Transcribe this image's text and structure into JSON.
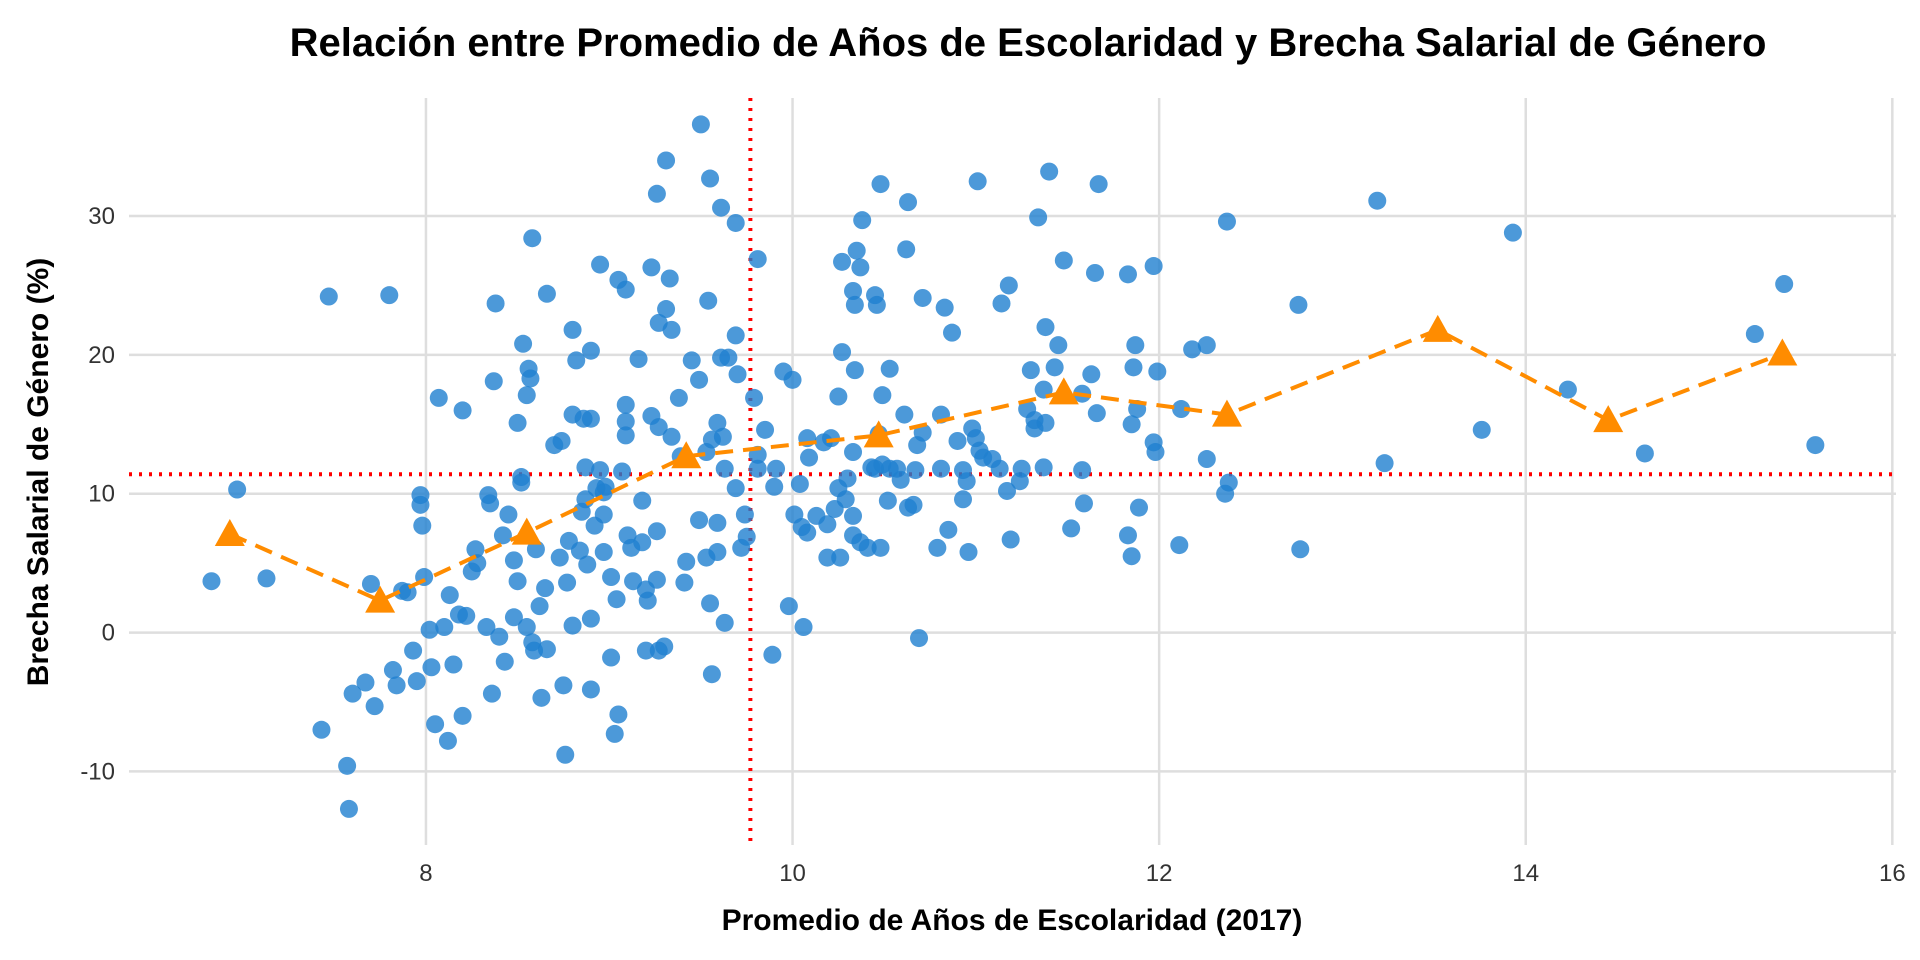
{
  "chart_data": {
    "type": "scatter",
    "title": "Relación entre Promedio de Años de Escolaridad y Brecha Salarial de Género",
    "xlabel": "Promedio de Años de Escolaridad (2017)",
    "ylabel": "Brecha Salarial de Género (%)",
    "xlim": [
      6.38,
      16.02
    ],
    "ylim": [
      -15.3,
      38.5
    ],
    "xticks": [
      8,
      10,
      12,
      14,
      16
    ],
    "yticks": [
      -10,
      0,
      10,
      20,
      30
    ],
    "grid": true,
    "colors": {
      "points": "#1f7fcf",
      "trend": "#ff8c00",
      "reference": "#ff0000"
    },
    "reference_lines": {
      "x_mean": 9.77,
      "y_mean": 11.4
    },
    "series": [
      {
        "name": "points",
        "type": "scatter",
        "points": [
          [
            6.83,
            3.7
          ],
          [
            6.97,
            10.3
          ],
          [
            7.13,
            3.9
          ],
          [
            7.43,
            -7
          ],
          [
            7.47,
            24.2
          ],
          [
            7.57,
            -9.6
          ],
          [
            7.58,
            -12.7
          ],
          [
            7.6,
            -4.4
          ],
          [
            7.67,
            -3.6
          ],
          [
            7.7,
            3.5
          ],
          [
            7.72,
            -5.3
          ],
          [
            7.8,
            24.3
          ],
          [
            7.82,
            -2.7
          ],
          [
            7.84,
            -3.8
          ],
          [
            7.87,
            3
          ],
          [
            7.9,
            2.9
          ],
          [
            7.93,
            -1.3
          ],
          [
            7.95,
            -3.5
          ],
          [
            7.97,
            9.9
          ],
          [
            7.97,
            9.2
          ],
          [
            7.98,
            7.7
          ],
          [
            7.99,
            4
          ],
          [
            8.02,
            0.2
          ],
          [
            8.03,
            -2.5
          ],
          [
            8.05,
            -6.6
          ],
          [
            8.07,
            16.9
          ],
          [
            8.1,
            0.4
          ],
          [
            8.13,
            2.7
          ],
          [
            8.12,
            -7.8
          ],
          [
            8.15,
            -2.3
          ],
          [
            8.18,
            1.3
          ],
          [
            8.2,
            -6
          ],
          [
            8.2,
            16
          ],
          [
            8.22,
            1.2
          ],
          [
            8.25,
            4.4
          ],
          [
            8.27,
            6
          ],
          [
            8.28,
            5
          ],
          [
            8.33,
            0.4
          ],
          [
            8.34,
            9.9
          ],
          [
            8.35,
            9.3
          ],
          [
            8.36,
            -4.4
          ],
          [
            8.37,
            18.1
          ],
          [
            8.38,
            23.7
          ],
          [
            8.4,
            -0.3
          ],
          [
            8.42,
            7
          ],
          [
            8.43,
            -2.1
          ],
          [
            8.45,
            8.5
          ],
          [
            8.48,
            1.1
          ],
          [
            8.48,
            5.2
          ],
          [
            8.5,
            3.7
          ],
          [
            8.5,
            15.1
          ],
          [
            8.52,
            11.2
          ],
          [
            8.52,
            10.8
          ],
          [
            8.53,
            20.8
          ],
          [
            8.55,
            17.1
          ],
          [
            8.55,
            0.4
          ],
          [
            8.56,
            19
          ],
          [
            8.57,
            18.3
          ],
          [
            8.58,
            -0.7
          ],
          [
            8.59,
            -1.3
          ],
          [
            8.6,
            6
          ],
          [
            8.58,
            28.4
          ],
          [
            8.62,
            1.9
          ],
          [
            8.63,
            -4.7
          ],
          [
            8.65,
            3.2
          ],
          [
            8.66,
            -1.2
          ],
          [
            8.66,
            24.4
          ],
          [
            8.7,
            13.5
          ],
          [
            8.73,
            5.4
          ],
          [
            8.74,
            13.8
          ],
          [
            8.75,
            -3.8
          ],
          [
            8.76,
            -8.8
          ],
          [
            8.77,
            3.6
          ],
          [
            8.78,
            6.6
          ],
          [
            8.8,
            0.5
          ],
          [
            8.8,
            15.7
          ],
          [
            8.8,
            21.8
          ],
          [
            8.82,
            19.6
          ],
          [
            8.84,
            5.9
          ],
          [
            8.85,
            8.7
          ],
          [
            8.86,
            15.4
          ],
          [
            8.87,
            9.6
          ],
          [
            8.87,
            11.9
          ],
          [
            8.88,
            4.9
          ],
          [
            8.9,
            20.3
          ],
          [
            8.9,
            1
          ],
          [
            8.9,
            -4.1
          ],
          [
            8.92,
            7.7
          ],
          [
            8.93,
            10.4
          ],
          [
            8.95,
            11.7
          ],
          [
            8.97,
            5.8
          ],
          [
            8.98,
            10.5
          ],
          [
            9.5,
            36.6
          ],
          [
            9.31,
            34
          ],
          [
            9.26,
            31.6
          ],
          [
            9.55,
            32.7
          ],
          [
            9.61,
            30.6
          ],
          [
            9.69,
            29.5
          ],
          [
            9.81,
            26.9
          ],
          [
            8.95,
            26.5
          ],
          [
            9.05,
            25.4
          ],
          [
            9.09,
            24.7
          ],
          [
            9.23,
            26.3
          ],
          [
            9.33,
            25.5
          ],
          [
            9.31,
            23.3
          ],
          [
            9.27,
            22.3
          ],
          [
            9.34,
            21.8
          ],
          [
            9.54,
            23.9
          ],
          [
            9.69,
            21.4
          ],
          [
            9.16,
            19.7
          ],
          [
            9.45,
            19.6
          ],
          [
            9.61,
            19.8
          ],
          [
            9.65,
            19.8
          ],
          [
            9.7,
            18.6
          ],
          [
            9.49,
            18.2
          ],
          [
            9.38,
            16.9
          ],
          [
            9.79,
            16.9
          ],
          [
            9.09,
            16.4
          ],
          [
            9.23,
            15.6
          ],
          [
            9.09,
            15.2
          ],
          [
            9.59,
            15.1
          ],
          [
            8.9,
            15.4
          ],
          [
            9.27,
            14.8
          ],
          [
            9.56,
            13.9
          ],
          [
            9.34,
            14.1
          ],
          [
            9.09,
            14.2
          ],
          [
            9.62,
            14.1
          ],
          [
            9.85,
            14.6
          ],
          [
            9.53,
            13
          ],
          [
            9.81,
            12.8
          ],
          [
            9.39,
            12.7
          ],
          [
            9.63,
            11.8
          ],
          [
            9.07,
            11.6
          ],
          [
            9.81,
            11.8
          ],
          [
            9.9,
            10.5
          ],
          [
            9.69,
            10.4
          ],
          [
            9.18,
            9.5
          ],
          [
            8.97,
            10.1
          ],
          [
            8.97,
            8.5
          ],
          [
            9.74,
            8.5
          ],
          [
            9.49,
            8.1
          ],
          [
            9.59,
            7.9
          ],
          [
            9.26,
            7.3
          ],
          [
            9.1,
            7
          ],
          [
            9.75,
            6.9
          ],
          [
            9.12,
            6.1
          ],
          [
            9.18,
            6.5
          ],
          [
            9.59,
            5.8
          ],
          [
            9.53,
            5.4
          ],
          [
            9.42,
            5.1
          ],
          [
            9.72,
            6.1
          ],
          [
            9.01,
            4
          ],
          [
            9.13,
            3.7
          ],
          [
            9.26,
            3.8
          ],
          [
            9.2,
            3.1
          ],
          [
            9.41,
            3.6
          ],
          [
            9.04,
            2.4
          ],
          [
            9.55,
            2.1
          ],
          [
            9.21,
            2.3
          ],
          [
            9.98,
            1.9
          ],
          [
            9.63,
            0.7
          ],
          [
            10.06,
            0.4
          ],
          [
            9.2,
            -1.3
          ],
          [
            9.27,
            -1.3
          ],
          [
            9.3,
            -1
          ],
          [
            9.01,
            -1.8
          ],
          [
            9.89,
            -1.6
          ],
          [
            9.56,
            -3
          ],
          [
            9.05,
            -5.9
          ],
          [
            9.03,
            -7.3
          ],
          [
            9.95,
            18.8
          ],
          [
            10,
            18.2
          ],
          [
            10.08,
            14
          ],
          [
            9.91,
            11.8
          ],
          [
            10.04,
            10.7
          ],
          [
            10.09,
            12.6
          ],
          [
            10.17,
            13.7
          ],
          [
            10.21,
            14
          ],
          [
            10.01,
            8.5
          ],
          [
            10.05,
            7.6
          ],
          [
            10.08,
            7.2
          ],
          [
            10.13,
            8.4
          ],
          [
            10.19,
            7.8
          ],
          [
            10.23,
            8.9
          ],
          [
            10.19,
            5.4
          ],
          [
            10.26,
            5.4
          ],
          [
            10.27,
            26.7
          ],
          [
            10.35,
            27.5
          ],
          [
            10.37,
            26.3
          ],
          [
            10.38,
            29.7
          ],
          [
            10.33,
            24.6
          ],
          [
            10.34,
            23.6
          ],
          [
            10.45,
            24.3
          ],
          [
            10.46,
            23.6
          ],
          [
            10.48,
            32.3
          ],
          [
            10.63,
            31
          ],
          [
            10.62,
            27.6
          ],
          [
            10.71,
            24.1
          ],
          [
            10.83,
            23.4
          ],
          [
            10.87,
            21.6
          ],
          [
            11.01,
            32.5
          ],
          [
            11.18,
            25
          ],
          [
            11.14,
            23.7
          ],
          [
            10.27,
            20.2
          ],
          [
            10.34,
            18.9
          ],
          [
            10.53,
            19
          ],
          [
            10.25,
            17
          ],
          [
            10.49,
            17.1
          ],
          [
            10.61,
            15.7
          ],
          [
            10.81,
            15.7
          ],
          [
            10.47,
            14.3
          ],
          [
            10.71,
            14.4
          ],
          [
            10.98,
            14.7
          ],
          [
            11,
            14
          ],
          [
            10.9,
            13.8
          ],
          [
            11.02,
            13.1
          ],
          [
            11.04,
            12.6
          ],
          [
            11.09,
            12.5
          ],
          [
            10.68,
            13.5
          ],
          [
            10.33,
            13
          ],
          [
            10.45,
            11.8
          ],
          [
            10.49,
            12.1
          ],
          [
            10.53,
            11.8
          ],
          [
            10.57,
            11.8
          ],
          [
            10.43,
            11.9
          ],
          [
            10.3,
            11.1
          ],
          [
            10.59,
            11
          ],
          [
            10.67,
            11.7
          ],
          [
            10.81,
            11.8
          ],
          [
            10.93,
            11.7
          ],
          [
            10.95,
            10.9
          ],
          [
            11.13,
            11.8
          ],
          [
            10.29,
            9.6
          ],
          [
            10.25,
            10.4
          ],
          [
            10.33,
            8.4
          ],
          [
            10.52,
            9.5
          ],
          [
            10.63,
            9
          ],
          [
            10.66,
            9.2
          ],
          [
            10.93,
            9.6
          ],
          [
            11.17,
            10.2
          ],
          [
            10.33,
            7
          ],
          [
            10.37,
            6.5
          ],
          [
            10.41,
            6.1
          ],
          [
            10.48,
            6.1
          ],
          [
            10.79,
            6.1
          ],
          [
            10.85,
            7.4
          ],
          [
            10.96,
            5.8
          ],
          [
            10.69,
            -0.4
          ],
          [
            11.19,
            6.7
          ],
          [
            11.4,
            33.2
          ],
          [
            11.34,
            29.9
          ],
          [
            11.67,
            32.3
          ],
          [
            11.48,
            26.8
          ],
          [
            11.65,
            25.9
          ],
          [
            11.83,
            25.8
          ],
          [
            11.97,
            26.4
          ],
          [
            11.38,
            22
          ],
          [
            11.45,
            20.7
          ],
          [
            11.43,
            19.1
          ],
          [
            11.3,
            18.9
          ],
          [
            11.37,
            17.5
          ],
          [
            11.63,
            18.6
          ],
          [
            11.87,
            20.7
          ],
          [
            11.86,
            19.1
          ],
          [
            11.99,
            18.8
          ],
          [
            11.58,
            17.2
          ],
          [
            11.66,
            15.8
          ],
          [
            11.28,
            16.1
          ],
          [
            11.32,
            15.3
          ],
          [
            11.32,
            14.7
          ],
          [
            11.38,
            15.1
          ],
          [
            11.88,
            16.1
          ],
          [
            11.85,
            15
          ],
          [
            11.97,
            13.7
          ],
          [
            11.98,
            13
          ],
          [
            12.12,
            16.1
          ],
          [
            11.25,
            11.8
          ],
          [
            11.24,
            10.9
          ],
          [
            11.37,
            11.9
          ],
          [
            11.58,
            11.7
          ],
          [
            11.59,
            9.3
          ],
          [
            11.52,
            7.5
          ],
          [
            11.89,
            9
          ],
          [
            11.83,
            7
          ],
          [
            11.85,
            5.5
          ],
          [
            12.11,
            6.3
          ],
          [
            12.18,
            20.4
          ],
          [
            12.26,
            20.7
          ],
          [
            12.26,
            12.5
          ],
          [
            12.37,
            29.6
          ],
          [
            12.38,
            10.8
          ],
          [
            12.36,
            10
          ],
          [
            12.76,
            23.6
          ],
          [
            12.77,
            6
          ],
          [
            13.19,
            31.1
          ],
          [
            13.23,
            12.2
          ],
          [
            13.93,
            28.8
          ],
          [
            13.76,
            14.6
          ],
          [
            14.23,
            17.5
          ],
          [
            14.65,
            12.9
          ],
          [
            15.25,
            21.5
          ],
          [
            15.41,
            25.1
          ],
          [
            15.58,
            13.5
          ]
        ]
      },
      {
        "name": "binned-mean",
        "type": "line",
        "style": "dashed",
        "marker": "triangle",
        "points": [
          [
            6.93,
            7.1
          ],
          [
            7.75,
            2.3
          ],
          [
            8.55,
            7.2
          ],
          [
            9.42,
            12.7
          ],
          [
            10.47,
            14.2
          ],
          [
            11.48,
            17.3
          ],
          [
            12.37,
            15.7
          ],
          [
            13.52,
            21.8
          ],
          [
            14.45,
            15.3
          ],
          [
            15.4,
            20.1
          ]
        ]
      }
    ]
  }
}
